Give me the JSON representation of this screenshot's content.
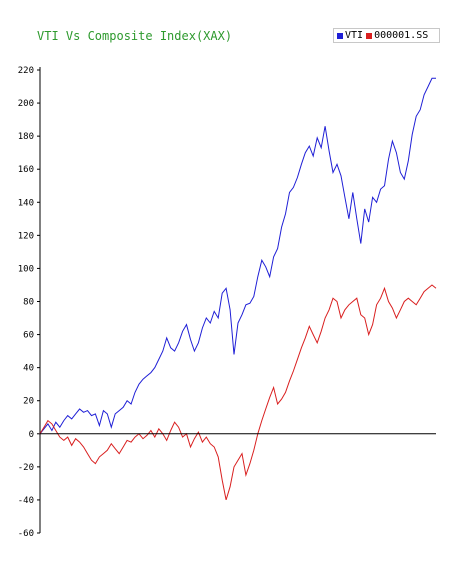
{
  "chart_data": {
    "type": "line",
    "title": "VTI Vs Composite Index(XAX)",
    "xlabel": "",
    "ylabel": "",
    "ylim": [
      -60,
      220
    ],
    "yticks": [
      220,
      200,
      180,
      160,
      140,
      120,
      100,
      80,
      60,
      40,
      20,
      0,
      -20,
      -40,
      -60
    ],
    "grid": false,
    "legend_position": "top-right",
    "x": [
      0,
      1,
      2,
      3,
      4,
      5,
      6,
      7,
      8,
      9,
      10,
      11,
      12,
      13,
      14,
      15,
      16,
      17,
      18,
      19,
      20,
      21,
      22,
      23,
      24,
      25,
      26,
      27,
      28,
      29,
      30,
      31,
      32,
      33,
      34,
      35,
      36,
      37,
      38,
      39,
      40,
      41,
      42,
      43,
      44,
      45,
      46,
      47,
      48,
      49,
      50,
      51,
      52,
      53,
      54,
      55,
      56,
      57,
      58,
      59,
      60,
      61,
      62,
      63,
      64,
      65,
      66,
      67,
      68,
      69,
      70,
      71,
      72,
      73,
      74,
      75,
      76,
      77,
      78,
      79,
      80,
      81,
      82,
      83,
      84,
      85,
      86,
      87,
      88,
      89,
      90,
      91,
      92,
      93,
      94,
      95,
      96,
      97,
      98,
      99,
      100
    ],
    "series": [
      {
        "name": "VTI",
        "color": "#1f1fd6",
        "values": [
          0,
          3,
          6,
          2,
          7,
          4,
          8,
          11,
          9,
          12,
          15,
          13,
          14,
          11,
          12,
          5,
          14,
          12,
          4,
          12,
          14,
          16,
          20,
          18,
          25,
          30,
          33,
          35,
          37,
          40,
          45,
          50,
          58,
          52,
          50,
          55,
          62,
          66,
          57,
          50,
          55,
          64,
          70,
          67,
          74,
          70,
          85,
          88,
          75,
          48,
          67,
          72,
          78,
          79,
          83,
          95,
          105,
          101,
          95,
          107,
          112,
          125,
          133,
          146,
          149,
          155,
          163,
          170,
          174,
          168,
          179,
          173,
          186,
          171,
          158,
          163,
          156,
          143,
          130,
          146,
          130,
          115,
          136,
          128,
          143,
          140,
          148,
          150,
          166,
          177,
          170,
          158,
          154,
          165,
          181,
          192,
          196,
          205,
          210,
          215,
          215
        ]
      },
      {
        "name": "000001.SS",
        "color": "#d91f1f",
        "values": [
          0,
          4,
          8,
          6,
          2,
          -2,
          -4,
          -2,
          -7,
          -3,
          -5,
          -8,
          -12,
          -16,
          -18,
          -14,
          -12,
          -10,
          -6,
          -9,
          -12,
          -8,
          -4,
          -5,
          -2,
          0,
          -3,
          -1,
          2,
          -2,
          3,
          0,
          -4,
          2,
          7,
          4,
          -2,
          0,
          -8,
          -3,
          1,
          -5,
          -2,
          -6,
          -8,
          -14,
          -28,
          -40,
          -32,
          -20,
          -16,
          -12,
          -25,
          -18,
          -10,
          0,
          8,
          15,
          22,
          28,
          18,
          21,
          25,
          32,
          38,
          45,
          52,
          58,
          65,
          60,
          55,
          62,
          70,
          75,
          82,
          80,
          70,
          75,
          78,
          80,
          82,
          72,
          70,
          60,
          66,
          78,
          82,
          88,
          80,
          76,
          70,
          75,
          80,
          82,
          80,
          78,
          82,
          86,
          88,
          90,
          88
        ]
      }
    ]
  }
}
